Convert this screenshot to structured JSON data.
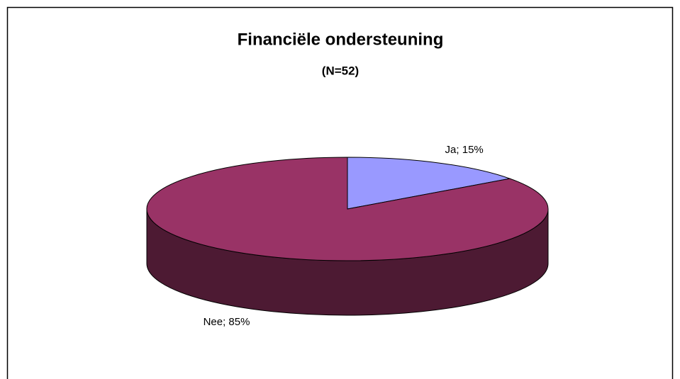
{
  "chart_data": {
    "type": "pie",
    "title": "Financiële ondersteuning",
    "subtitle": "(N=52)",
    "categories": [
      "Ja",
      "Nee"
    ],
    "values": [
      15,
      85
    ],
    "value_labels": [
      "Ja; 15%",
      "Nee; 85%"
    ],
    "colors": [
      "#9999ff",
      "#993366"
    ],
    "side_colors": [
      "#4d4d80",
      "#4d1a33"
    ]
  }
}
